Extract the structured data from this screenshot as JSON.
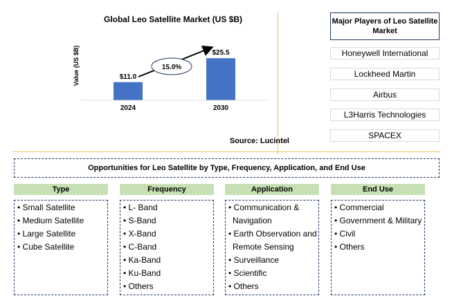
{
  "chart_data": {
    "type": "bar",
    "title": "Global Leo Satellite Market (US $B)",
    "ylabel": "Value (US $B)",
    "categories": [
      "2024",
      "2030"
    ],
    "values": [
      11.0,
      25.5
    ],
    "value_labels": [
      "$11.0",
      "$25.5"
    ],
    "cagr_label": "15.0%",
    "bar_color": "#4472c4",
    "grid": false,
    "source": "Source: Lucintel"
  },
  "players": {
    "title": "Major Players of Leo Satellite Market",
    "items": [
      "Honeywell International",
      "Lockheed Martin",
      "Airbus",
      "L3Harris Technologies",
      "SPACEX"
    ]
  },
  "opportunities": {
    "title": "Opportunities for Leo Satellite by Type, Frequency, Application, and End Use",
    "categories": [
      {
        "name": "Type",
        "items": [
          "• Small Satellite",
          "• Medium Satellite",
          "• Large Satellite",
          "• Cube Satellite"
        ]
      },
      {
        "name": "Frequency",
        "items": [
          "• L- Band",
          "• S-Band",
          "• X-Band",
          "• C-Band",
          "• Ka-Band",
          "• Ku-Band",
          "• Others"
        ]
      },
      {
        "name": "Application",
        "items": [
          "• Communication &",
          "  Navigation",
          "• Earth Observation and",
          "  Remote Sensing",
          "• Surveillance",
          "• Scientific",
          "• Others"
        ]
      },
      {
        "name": "End Use",
        "items": [
          "• Commercial",
          "• Government & Military",
          "• Civil",
          "• Others"
        ]
      }
    ]
  }
}
